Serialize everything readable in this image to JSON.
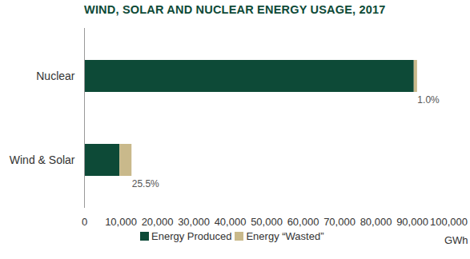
{
  "chart_data": {
    "type": "bar",
    "orientation": "horizontal",
    "stacked": true,
    "title": "WIND, SOLAR AND NUCLEAR ENERGY USAGE, 2017",
    "categories": [
      "Nuclear",
      "Wind & Solar"
    ],
    "series": [
      {
        "name": "Energy Produced",
        "color": "#0d4a37",
        "values": [
          90500,
          9700
        ]
      },
      {
        "name": "Energy “Wasted”",
        "color": "#c9b98b",
        "values": [
          900,
          3320
        ]
      }
    ],
    "annotations": [
      {
        "category": "Nuclear",
        "text": "1.0%"
      },
      {
        "category": "Wind & Solar",
        "text": "25.5%"
      }
    ],
    "xlabel": "GWh",
    "xlim": [
      0,
      100000
    ],
    "xticks": [
      0,
      {
        "value": 10000,
        "label": "10,000"
      },
      {
        "value": 20000,
        "label": "20,000"
      },
      {
        "value": 30000,
        "label": "30,000"
      },
      {
        "value": 40000,
        "label": "40,000"
      },
      {
        "value": 50000,
        "label": "50,000"
      },
      {
        "value": 60000,
        "label": "60,000"
      },
      {
        "value": 70000,
        "label": "70,000"
      },
      {
        "value": 80000,
        "label": "80,000"
      },
      {
        "value": 90000,
        "label": "90,000"
      },
      {
        "value": 100000,
        "label": "100,000"
      }
    ],
    "grid": false,
    "legend": "bottom"
  }
}
